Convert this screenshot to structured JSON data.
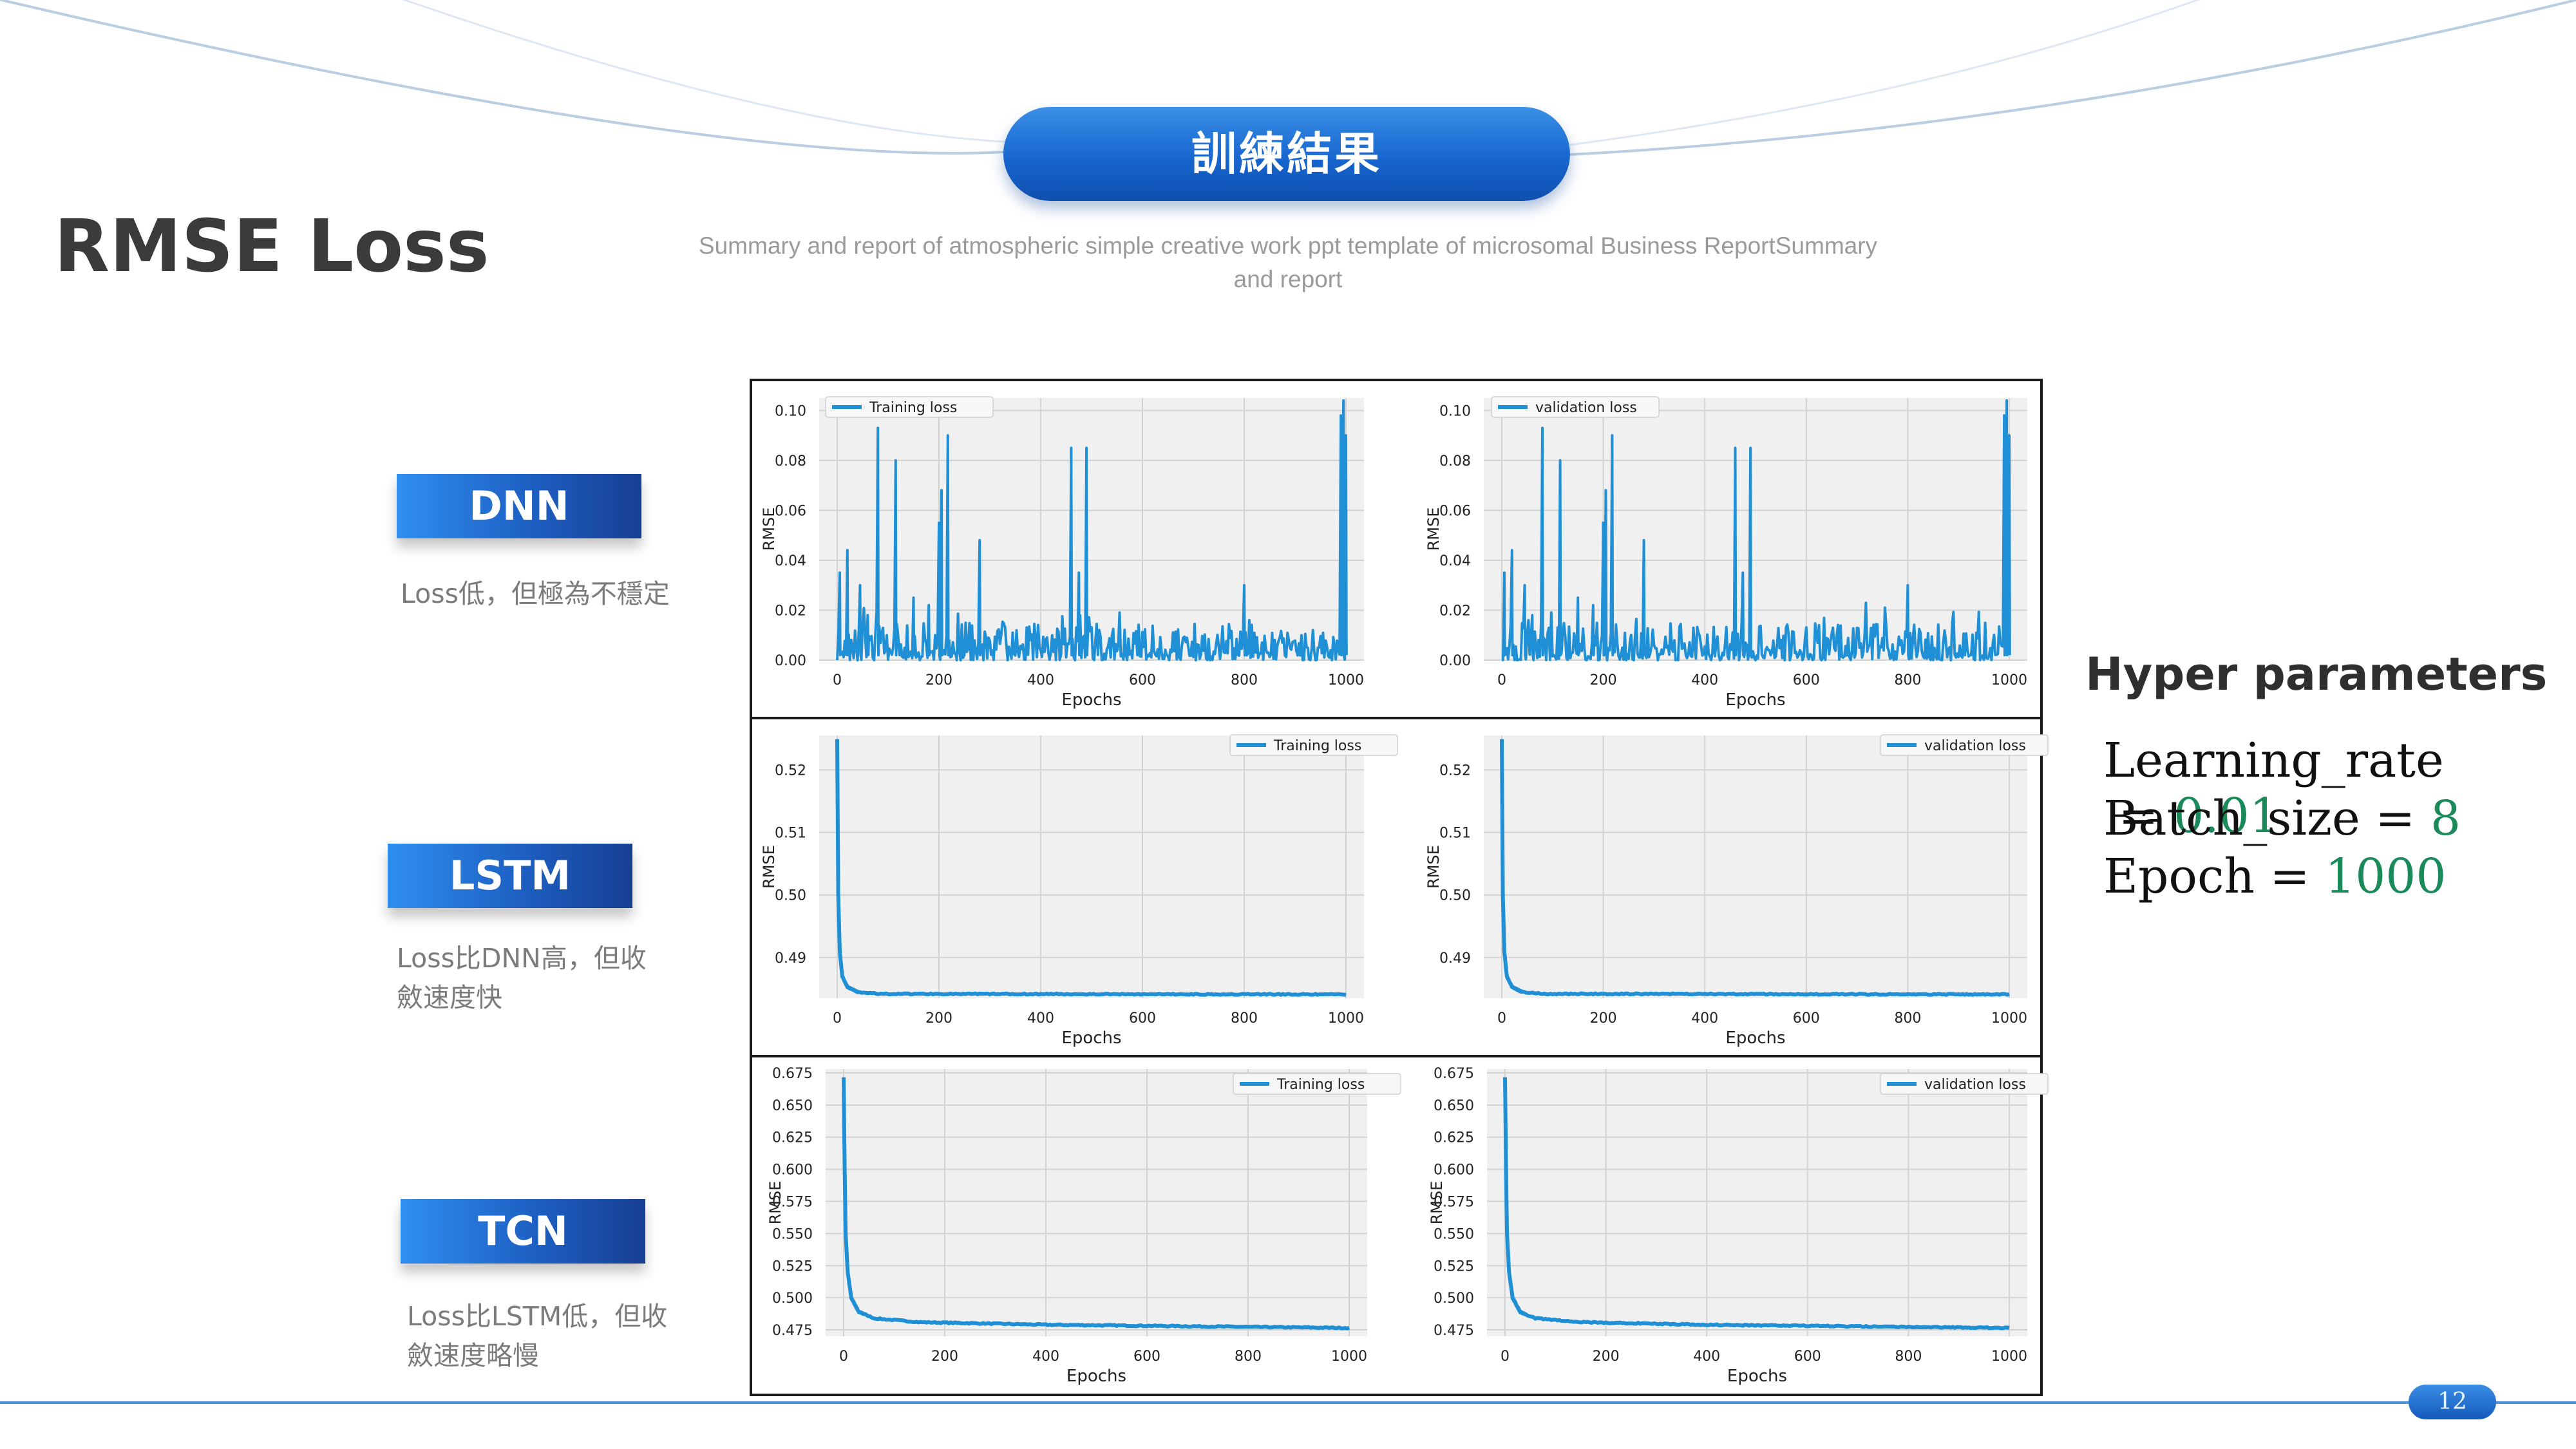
{
  "header": {
    "pill_title": "訓練結果",
    "main_title": "RMSE Loss",
    "subtitle": "Summary and report of atmospheric simple creative work ppt template of microsomal Business ReportSummary and report"
  },
  "models": [
    {
      "name": "DNN",
      "desc_lines": [
        "Loss低，但極為不穩定"
      ]
    },
    {
      "name": "LSTM",
      "desc_lines": [
        "Loss比DNN高，但收",
        "斂速度快"
      ]
    },
    {
      "name": "TCN",
      "desc_lines": [
        "Loss比LSTM低，但收",
        "斂速度略慢"
      ]
    }
  ],
  "hyper": {
    "title": "Hyper parameters",
    "lines": [
      {
        "name": "Learning_rate",
        "eq": " = ",
        "value": "0.01"
      },
      {
        "name": "Batch_size",
        "eq": " = ",
        "value": "8"
      },
      {
        "name": "Epoch",
        "eq": " = ",
        "value": "1000"
      }
    ]
  },
  "page_number": "12",
  "colors": {
    "accent": "#1766cf",
    "series": "#1f8fd6",
    "value_green": "#1b8a5a"
  },
  "chart_data": [
    {
      "id": "dnn-train",
      "type": "line",
      "series": [
        {
          "name": "Training loss",
          "values_note": "noisy"
        }
      ],
      "xlabel": "Epochs",
      "ylabel": "RMSE",
      "xlim": [
        0,
        1000
      ],
      "ylim": [
        0,
        0.105
      ],
      "xticks": [
        0,
        200,
        400,
        600,
        800,
        1000
      ],
      "yticks": [
        "0.00",
        "0.02",
        "0.04",
        "0.06",
        "0.08",
        "0.10"
      ],
      "legend": "top-left",
      "grid": true,
      "spikes": [
        [
          5,
          0.035
        ],
        [
          20,
          0.044
        ],
        [
          45,
          0.03
        ],
        [
          60,
          0.018
        ],
        [
          80,
          0.093
        ],
        [
          115,
          0.08
        ],
        [
          150,
          0.025
        ],
        [
          180,
          0.022
        ],
        [
          200,
          0.055
        ],
        [
          205,
          0.068
        ],
        [
          218,
          0.09
        ],
        [
          280,
          0.048
        ],
        [
          460,
          0.085
        ],
        [
          475,
          0.035
        ],
        [
          490,
          0.085
        ],
        [
          800,
          0.03
        ],
        [
          990,
          0.098
        ],
        [
          995,
          0.104
        ],
        [
          1000,
          0.09
        ]
      ],
      "baseline": [
        0.0,
        0.015
      ]
    },
    {
      "id": "dnn-val",
      "type": "line",
      "series": [
        {
          "name": "validation loss"
        }
      ],
      "xlabel": "Epochs",
      "ylabel": "RMSE",
      "xlim": [
        0,
        1000
      ],
      "ylim": [
        0,
        0.105
      ],
      "xticks": [
        0,
        200,
        400,
        600,
        800,
        1000
      ],
      "yticks": [
        "0.00",
        "0.02",
        "0.04",
        "0.06",
        "0.08",
        "0.10"
      ],
      "legend": "top-left",
      "grid": true,
      "spikes": [
        [
          5,
          0.035
        ],
        [
          20,
          0.044
        ],
        [
          45,
          0.03
        ],
        [
          60,
          0.018
        ],
        [
          80,
          0.093
        ],
        [
          115,
          0.08
        ],
        [
          150,
          0.025
        ],
        [
          180,
          0.022
        ],
        [
          200,
          0.055
        ],
        [
          205,
          0.068
        ],
        [
          218,
          0.09
        ],
        [
          280,
          0.048
        ],
        [
          460,
          0.085
        ],
        [
          475,
          0.035
        ],
        [
          490,
          0.085
        ],
        [
          800,
          0.03
        ],
        [
          990,
          0.098
        ],
        [
          995,
          0.104
        ],
        [
          1000,
          0.09
        ]
      ],
      "baseline": [
        0.0,
        0.015
      ]
    },
    {
      "id": "lstm-train",
      "type": "line",
      "series": [
        {
          "name": "Training loss"
        }
      ],
      "xlabel": "Epochs",
      "ylabel": "RMSE",
      "xlim": [
        0,
        1000
      ],
      "ylim": [
        0.4835,
        0.5255
      ],
      "xticks": [
        0,
        200,
        400,
        600,
        800,
        1000
      ],
      "yticks": [
        "0.49",
        "0.50",
        "0.51",
        "0.52"
      ],
      "legend": "top-right",
      "grid": true,
      "curve": [
        [
          0,
          0.525
        ],
        [
          2,
          0.5
        ],
        [
          5,
          0.491
        ],
        [
          10,
          0.487
        ],
        [
          20,
          0.4853
        ],
        [
          40,
          0.4845
        ],
        [
          80,
          0.4842
        ],
        [
          1000,
          0.4841
        ]
      ]
    },
    {
      "id": "lstm-val",
      "type": "line",
      "series": [
        {
          "name": "validation loss"
        }
      ],
      "xlabel": "Epochs",
      "ylabel": "RMSE",
      "xlim": [
        0,
        1000
      ],
      "ylim": [
        0.4835,
        0.5255
      ],
      "xticks": [
        0,
        200,
        400,
        600,
        800,
        1000
      ],
      "yticks": [
        "0.49",
        "0.50",
        "0.51",
        "0.52"
      ],
      "legend": "top-right",
      "grid": true,
      "curve": [
        [
          0,
          0.525
        ],
        [
          2,
          0.5
        ],
        [
          5,
          0.491
        ],
        [
          10,
          0.487
        ],
        [
          20,
          0.4853
        ],
        [
          40,
          0.4845
        ],
        [
          80,
          0.4842
        ],
        [
          1000,
          0.4841
        ]
      ]
    },
    {
      "id": "tcn-train",
      "type": "line",
      "series": [
        {
          "name": "Training loss"
        }
      ],
      "xlabel": "Epochs",
      "ylabel": "RMSE",
      "xlim": [
        0,
        1000
      ],
      "ylim": [
        0.47,
        0.678
      ],
      "xticks": [
        0,
        200,
        400,
        600,
        800,
        1000
      ],
      "yticks": [
        "0.475",
        "0.500",
        "0.525",
        "0.550",
        "0.575",
        "0.600",
        "0.625",
        "0.650",
        "0.675"
      ],
      "legend": "top-right",
      "grid": true,
      "curve": [
        [
          0,
          0.672
        ],
        [
          2,
          0.6
        ],
        [
          4,
          0.55
        ],
        [
          8,
          0.52
        ],
        [
          15,
          0.5
        ],
        [
          30,
          0.489
        ],
        [
          60,
          0.484
        ],
        [
          150,
          0.481
        ],
        [
          400,
          0.479
        ],
        [
          1000,
          0.4765
        ]
      ]
    },
    {
      "id": "tcn-val",
      "type": "line",
      "series": [
        {
          "name": "validation loss"
        }
      ],
      "xlabel": "Epochs",
      "ylabel": "RMSE",
      "xlim": [
        0,
        1000
      ],
      "ylim": [
        0.47,
        0.678
      ],
      "xticks": [
        0,
        200,
        400,
        600,
        800,
        1000
      ],
      "yticks": [
        "0.475",
        "0.500",
        "0.525",
        "0.550",
        "0.575",
        "0.600",
        "0.625",
        "0.650",
        "0.675"
      ],
      "legend": "top-right",
      "grid": true,
      "curve": [
        [
          0,
          0.672
        ],
        [
          2,
          0.6
        ],
        [
          4,
          0.55
        ],
        [
          8,
          0.52
        ],
        [
          15,
          0.5
        ],
        [
          30,
          0.489
        ],
        [
          60,
          0.484
        ],
        [
          150,
          0.481
        ],
        [
          400,
          0.479
        ],
        [
          1000,
          0.4765
        ]
      ]
    }
  ]
}
